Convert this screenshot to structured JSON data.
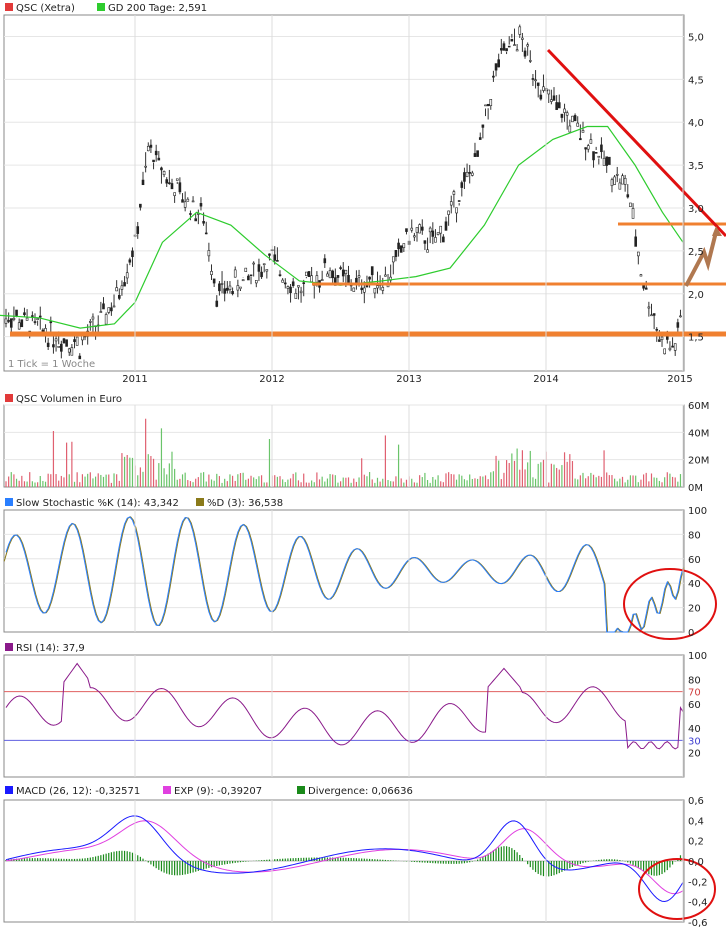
{
  "panels": {
    "price": {
      "legend": [
        {
          "label": "QSC (Xetra)",
          "color": "#e23a3a"
        },
        {
          "label": "GD 200 Tage: 2,591",
          "color": "#2ecc2e"
        }
      ],
      "note": "1 Tick = 1 Woche",
      "x_labels": [
        "2011",
        "2012",
        "2013",
        "2014",
        "2015"
      ],
      "y_labels": [
        "1,5",
        "2,0",
        "2,5",
        "3,0",
        "3,5",
        "4,0",
        "4,5",
        "5,0"
      ]
    },
    "volume": {
      "legend": [
        {
          "label": "QSC Volumen in Euro",
          "color": "#e23a3a"
        }
      ],
      "y_labels": [
        "0M",
        "20M",
        "40M",
        "60M"
      ]
    },
    "stoch": {
      "legend": [
        {
          "label": "Slow Stochastic %K (14): 43,342",
          "color": "#2a7fff"
        },
        {
          "label": "%D (3): 36,538",
          "color": "#8a7a1a"
        }
      ],
      "y_labels": [
        "0",
        "20",
        "40",
        "60",
        "80",
        "100"
      ]
    },
    "rsi": {
      "legend": [
        {
          "label": "RSI (14): 37,9",
          "color": "#8a1a8a"
        }
      ],
      "y_labels": [
        "20",
        "30",
        "40",
        "60",
        "70",
        "80",
        "100"
      ]
    },
    "macd": {
      "legend": [
        {
          "label": "MACD (26, 12): -0,32571",
          "color": "#1a1aff"
        },
        {
          "label": "EXP (9): -0,39207",
          "color": "#e040e0"
        },
        {
          "label": "Divergence: 0,06636",
          "color": "#1a8a1a"
        }
      ],
      "y_labels": [
        "-0,6",
        "-0,4",
        "-0,2",
        "0,0",
        "0,2",
        "0,4",
        "0,6"
      ]
    }
  },
  "chart_data": [
    {
      "type": "line",
      "title": "QSC (Xetra)",
      "x_axis": "weekly (1 Tick = 1 Woche)",
      "ylim": [
        1.1,
        5.25
      ],
      "series": [
        {
          "name": "QSC (Xetra)",
          "x": [
            2010.0,
            2010.3,
            2010.6,
            2010.85,
            2011.0,
            2011.1,
            2011.3,
            2011.5,
            2011.6,
            2011.85,
            2012.0,
            2012.2,
            2012.4,
            2012.6,
            2012.85,
            2013.0,
            2013.2,
            2013.5,
            2013.65,
            2013.8,
            2014.0,
            2014.3,
            2014.6,
            2014.7,
            2014.85,
            2014.95,
            2015.0
          ],
          "values": [
            1.8,
            1.6,
            1.4,
            1.9,
            2.6,
            3.7,
            3.2,
            2.9,
            2.0,
            2.2,
            2.4,
            2.0,
            2.3,
            2.1,
            2.2,
            2.7,
            2.6,
            3.6,
            4.7,
            5.0,
            4.3,
            3.8,
            3.2,
            2.2,
            1.4,
            1.4,
            1.9
          ]
        },
        {
          "name": "GD 200 Tage",
          "x": [
            2010.0,
            2010.3,
            2010.6,
            2010.85,
            2011.0,
            2011.2,
            2011.45,
            2011.7,
            2011.95,
            2012.2,
            2012.5,
            2012.8,
            2013.05,
            2013.3,
            2013.55,
            2013.8,
            2014.05,
            2014.3,
            2014.45,
            2014.65,
            2014.85,
            2015.0
          ],
          "values": [
            1.75,
            1.72,
            1.6,
            1.65,
            1.9,
            2.6,
            2.95,
            2.8,
            2.45,
            2.15,
            2.1,
            2.15,
            2.2,
            2.3,
            2.8,
            3.5,
            3.8,
            3.95,
            3.95,
            3.5,
            2.95,
            2.6
          ]
        }
      ],
      "annotations": [
        "falling red trendline from 2014 high",
        "orange support lines near 1,25 / 1,65 / 2,15",
        "projected brown arrow up"
      ]
    },
    {
      "type": "bar",
      "title": "QSC Volumen in Euro",
      "ylim": [
        0,
        60
      ],
      "unit": "M"
    },
    {
      "type": "line",
      "title": "Slow Stochastic",
      "ylim": [
        0,
        100
      ],
      "series": [
        {
          "name": "Slow Stochastic %K (14)",
          "last": 43.342
        },
        {
          "name": "%D (3)",
          "last": 36.538
        }
      ]
    },
    {
      "type": "line",
      "title": "RSI (14)",
      "ylim": [
        0,
        100
      ],
      "series": [
        {
          "name": "RSI (14)",
          "last": 37.9
        }
      ],
      "reference_lines": [
        30,
        70
      ]
    },
    {
      "type": "line",
      "title": "MACD (26, 12)",
      "ylim": [
        -0.6,
        0.6
      ],
      "series": [
        {
          "name": "MACD (26, 12)",
          "last": -0.32571
        },
        {
          "name": "EXP (9)",
          "last": -0.39207
        },
        {
          "name": "Divergence",
          "last": 0.06636
        }
      ]
    }
  ]
}
